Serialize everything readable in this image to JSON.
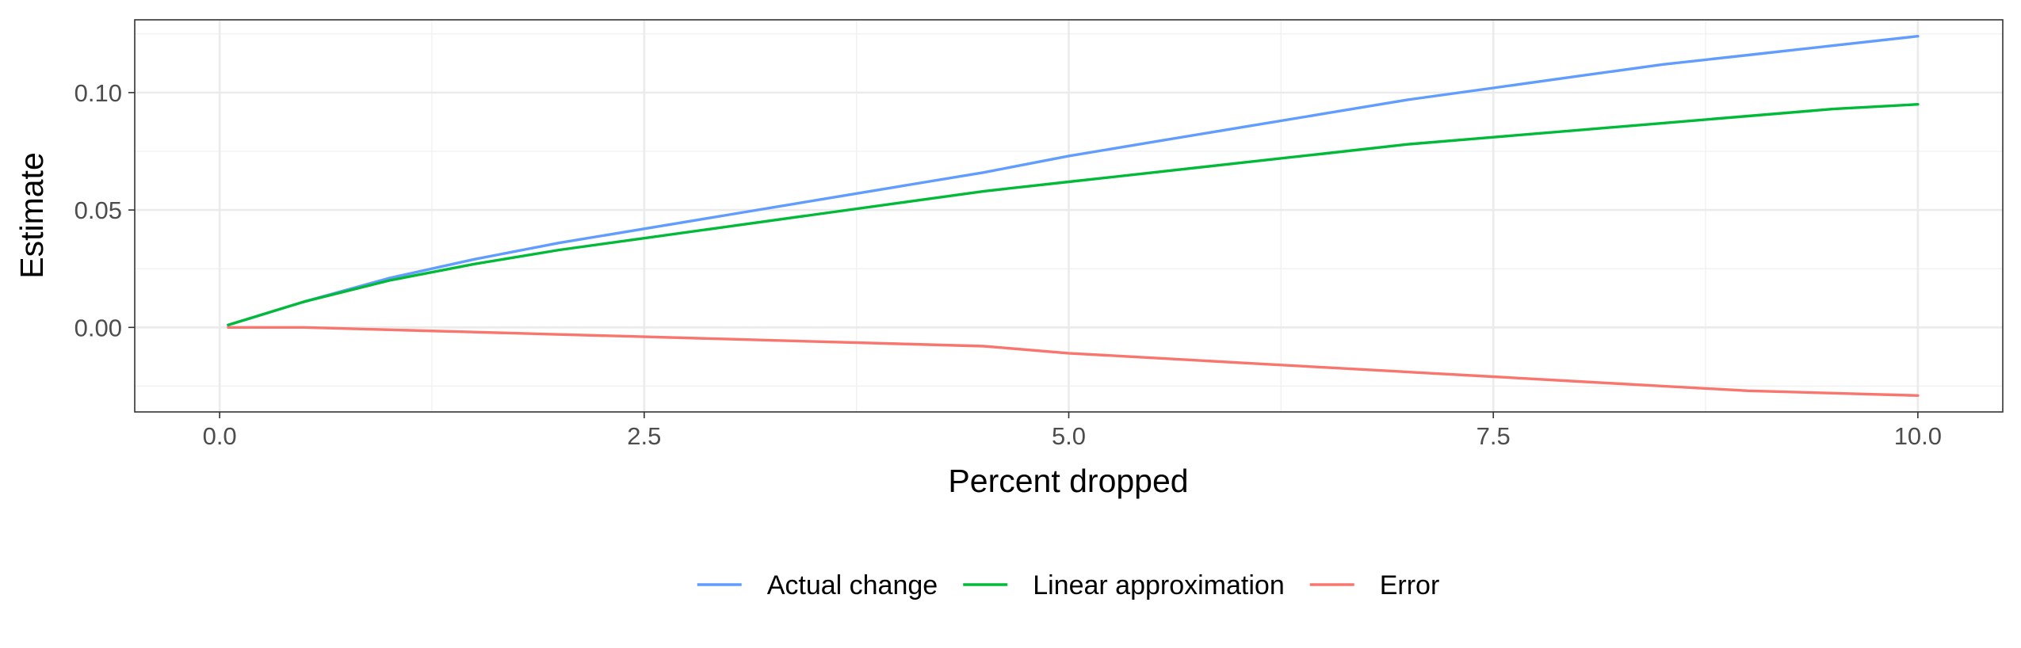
{
  "chart_data": {
    "type": "line",
    "title": "",
    "xlabel": "Percent dropped",
    "ylabel": "Estimate",
    "xlim": [
      -0.5,
      10.5
    ],
    "ylim": [
      -0.036,
      0.131
    ],
    "x_ticks": [
      0.0,
      2.5,
      5.0,
      7.5,
      10.0
    ],
    "x_tick_labels": [
      "0.0",
      "2.5",
      "5.0",
      "7.5",
      "10.0"
    ],
    "y_ticks": [
      0.0,
      0.05,
      0.1
    ],
    "y_tick_labels": [
      "0.00",
      "0.05",
      "0.10"
    ],
    "grid": true,
    "legend_position": "bottom",
    "x": [
      0.05,
      0.5,
      1.0,
      1.5,
      2.0,
      2.5,
      3.0,
      3.5,
      4.0,
      4.5,
      5.0,
      5.5,
      6.0,
      6.5,
      7.0,
      7.5,
      8.0,
      8.5,
      9.0,
      9.5,
      10.0
    ],
    "series": [
      {
        "name": "Actual change",
        "color": "#619cff",
        "values": [
          0.001,
          0.011,
          0.021,
          0.029,
          0.036,
          0.042,
          0.048,
          0.054,
          0.06,
          0.066,
          0.073,
          0.079,
          0.085,
          0.091,
          0.097,
          0.102,
          0.107,
          0.112,
          0.116,
          0.12,
          0.124
        ]
      },
      {
        "name": "Linear approximation",
        "color": "#00ba38",
        "values": [
          0.001,
          0.011,
          0.02,
          0.027,
          0.033,
          0.038,
          0.043,
          0.048,
          0.053,
          0.058,
          0.062,
          0.066,
          0.07,
          0.074,
          0.078,
          0.081,
          0.084,
          0.087,
          0.09,
          0.093,
          0.095
        ]
      },
      {
        "name": "Error",
        "color": "#f8766d",
        "values": [
          0.0,
          0.0,
          -0.001,
          -0.002,
          -0.003,
          -0.004,
          -0.005,
          -0.006,
          -0.007,
          -0.008,
          -0.011,
          -0.013,
          -0.015,
          -0.017,
          -0.019,
          -0.021,
          -0.023,
          -0.025,
          -0.027,
          -0.028,
          -0.029
        ]
      }
    ]
  }
}
